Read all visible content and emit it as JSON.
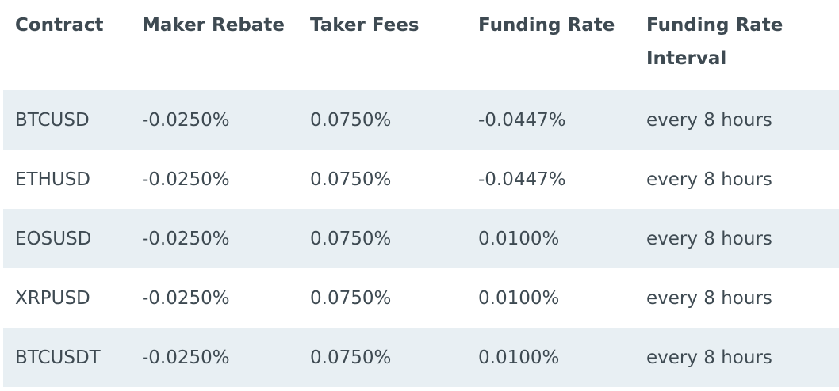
{
  "table": {
    "headers": [
      "Contract",
      "Maker Rebate",
      "Taker Fees",
      "Funding Rate",
      "Funding Rate Interval"
    ],
    "rows": [
      [
        "BTCUSD",
        "-0.0250%",
        "0.0750%",
        "-0.0447%",
        "every 8 hours"
      ],
      [
        "ETHUSD",
        "-0.0250%",
        "0.0750%",
        "-0.0447%",
        "every 8 hours"
      ],
      [
        "EOSUSD",
        "-0.0250%",
        "0.0750%",
        "0.0100%",
        "every 8 hours"
      ],
      [
        "XRPUSD",
        "-0.0250%",
        "0.0750%",
        "0.0100%",
        "every 8 hours"
      ],
      [
        "BTCUSDT",
        "-0.0250%",
        "0.0750%",
        "0.0100%",
        "every 8 hours"
      ]
    ]
  },
  "colors": {
    "text": "#3e4a52",
    "stripe": "#e8eff3",
    "background": "#ffffff"
  }
}
